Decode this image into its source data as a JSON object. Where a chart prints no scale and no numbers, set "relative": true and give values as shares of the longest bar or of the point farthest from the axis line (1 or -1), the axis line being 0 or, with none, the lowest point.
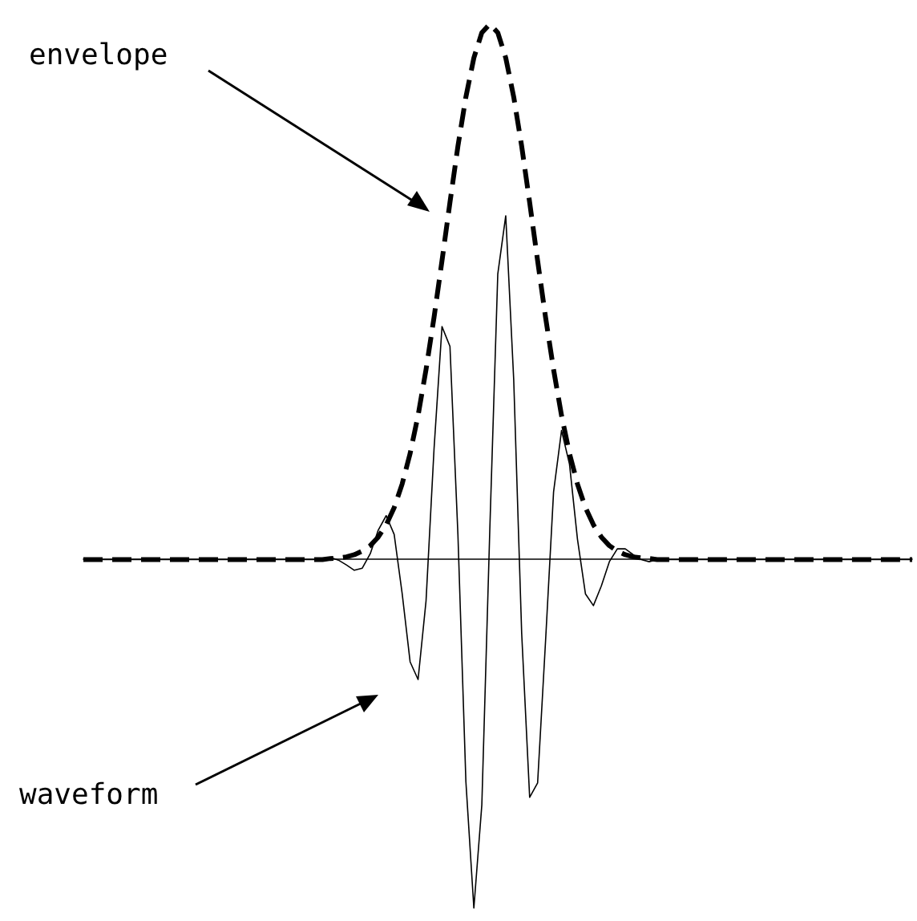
{
  "chart_data": {
    "type": "line",
    "relative": true,
    "categories": [
      null,
      null,
      null,
      null,
      null,
      null,
      null,
      null,
      null,
      null,
      null,
      null,
      null,
      null,
      null,
      null,
      null,
      null,
      null,
      null,
      null,
      null,
      null,
      null,
      null,
      null,
      null,
      null,
      null,
      null,
      null,
      null,
      null,
      null,
      null,
      null,
      null,
      null,
      null,
      null,
      null,
      null,
      null,
      null,
      null,
      null,
      null,
      null,
      null,
      null,
      null,
      null,
      null,
      null,
      null,
      null,
      null,
      null,
      null,
      null,
      null,
      null,
      null,
      null,
      null,
      null,
      null,
      null,
      null,
      null,
      null,
      null,
      null,
      null,
      null,
      null,
      null,
      null,
      null,
      null,
      null,
      null,
      null,
      null,
      null,
      null,
      null,
      null,
      null,
      null,
      null,
      null,
      null,
      null,
      null,
      null,
      null,
      null,
      null,
      null,
      null,
      null,
      null,
      null,
      null
    ],
    "series": [
      {
        "color": "#000000",
        "line_style": "solid",
        "values": [
          0,
          0,
          0,
          0,
          0,
          0,
          0,
          0,
          0,
          0,
          0,
          0,
          0,
          0,
          0,
          0,
          0,
          0,
          0,
          0,
          0,
          0,
          0,
          0,
          0,
          0,
          0,
          0,
          0,
          0,
          0,
          0.004,
          -0.001,
          -0.01,
          -0.02,
          -0.016,
          0.011,
          0.055,
          0.082,
          0.047,
          -0.063,
          -0.191,
          -0.224,
          -0.077,
          0.206,
          0.435,
          0.398,
          0.046,
          -0.415,
          -0.651,
          -0.458,
          0.056,
          0.533,
          0.642,
          0.336,
          -0.138,
          -0.444,
          -0.417,
          -0.151,
          0.126,
          0.241,
          0.178,
          0.038,
          -0.064,
          -0.086,
          -0.049,
          -0.004,
          0.02,
          0.02,
          0.009,
          0,
          -0.004,
          0,
          0,
          0,
          0,
          0,
          0,
          0,
          0,
          0,
          0,
          0,
          0,
          0,
          0,
          0,
          0,
          0,
          0,
          0,
          0,
          0,
          0,
          0,
          0,
          0,
          0,
          0,
          0,
          0,
          0,
          0,
          0,
          0
        ]
      },
      {
        "color": "#000000",
        "line_style": "dashed",
        "values": [
          0,
          0,
          0,
          0,
          0,
          0,
          0,
          0,
          0,
          0,
          0,
          0,
          0,
          0,
          0,
          0,
          0,
          0,
          0,
          0,
          0,
          0,
          0,
          0,
          0,
          0,
          0,
          0,
          0,
          0,
          0,
          0.002,
          0.003,
          0.005,
          0.009,
          0.016,
          0.026,
          0.042,
          0.065,
          0.097,
          0.141,
          0.198,
          0.269,
          0.355,
          0.452,
          0.558,
          0.667,
          0.772,
          0.864,
          0.937,
          0.984,
          1,
          0.984,
          0.937,
          0.864,
          0.772,
          0.667,
          0.558,
          0.452,
          0.355,
          0.269,
          0.198,
          0.141,
          0.097,
          0.065,
          0.042,
          0.026,
          0.016,
          0.009,
          0.005,
          0.003,
          0.002,
          0,
          0,
          0,
          0,
          0,
          0,
          0,
          0,
          0,
          0,
          0,
          0,
          0,
          0,
          0,
          0,
          0,
          0,
          0,
          0,
          0,
          0,
          0,
          0,
          0,
          0,
          0,
          0,
          0,
          0,
          0,
          0,
          0
        ]
      }
    ],
    "annotations": [
      "envelope",
      "waveform"
    ],
    "marker": "none"
  }
}
